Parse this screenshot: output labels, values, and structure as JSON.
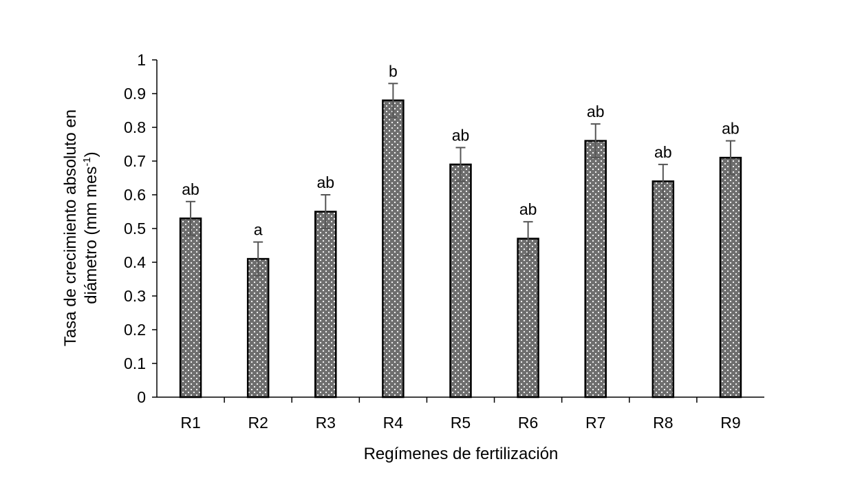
{
  "chart_data": {
    "type": "bar",
    "categories": [
      "R1",
      "R2",
      "R3",
      "R4",
      "R5",
      "R6",
      "R7",
      "R8",
      "R9"
    ],
    "values": [
      0.53,
      0.41,
      0.55,
      0.88,
      0.69,
      0.47,
      0.76,
      0.64,
      0.71
    ],
    "errors": [
      0.05,
      0.05,
      0.05,
      0.05,
      0.05,
      0.05,
      0.05,
      0.05,
      0.05
    ],
    "significance_labels": [
      "ab",
      "a",
      "ab",
      "b",
      "ab",
      "ab",
      "ab",
      "ab",
      "ab"
    ],
    "xlabel": "Regímenes de fertilización",
    "ylabel_line1": "Tasa de crecimiento absoluto en",
    "ylabel_line2_prefix": "diámetro (mm mes",
    "ylabel_line2_sup": "-1",
    "ylabel_line2_suffix": ")",
    "ylim": [
      0,
      1
    ],
    "yticks": [
      "0",
      "0.1",
      "0.2",
      "0.3",
      "0.4",
      "0.5",
      "0.6",
      "0.7",
      "0.8",
      "0.9",
      "1"
    ],
    "grid": false,
    "legend": "none",
    "colors": {
      "bar_fill": "#6e6e6e",
      "bar_dots": "#ffffff",
      "bar_edge": "#000000",
      "error_bar": "#555555",
      "axis": "#000000"
    }
  }
}
